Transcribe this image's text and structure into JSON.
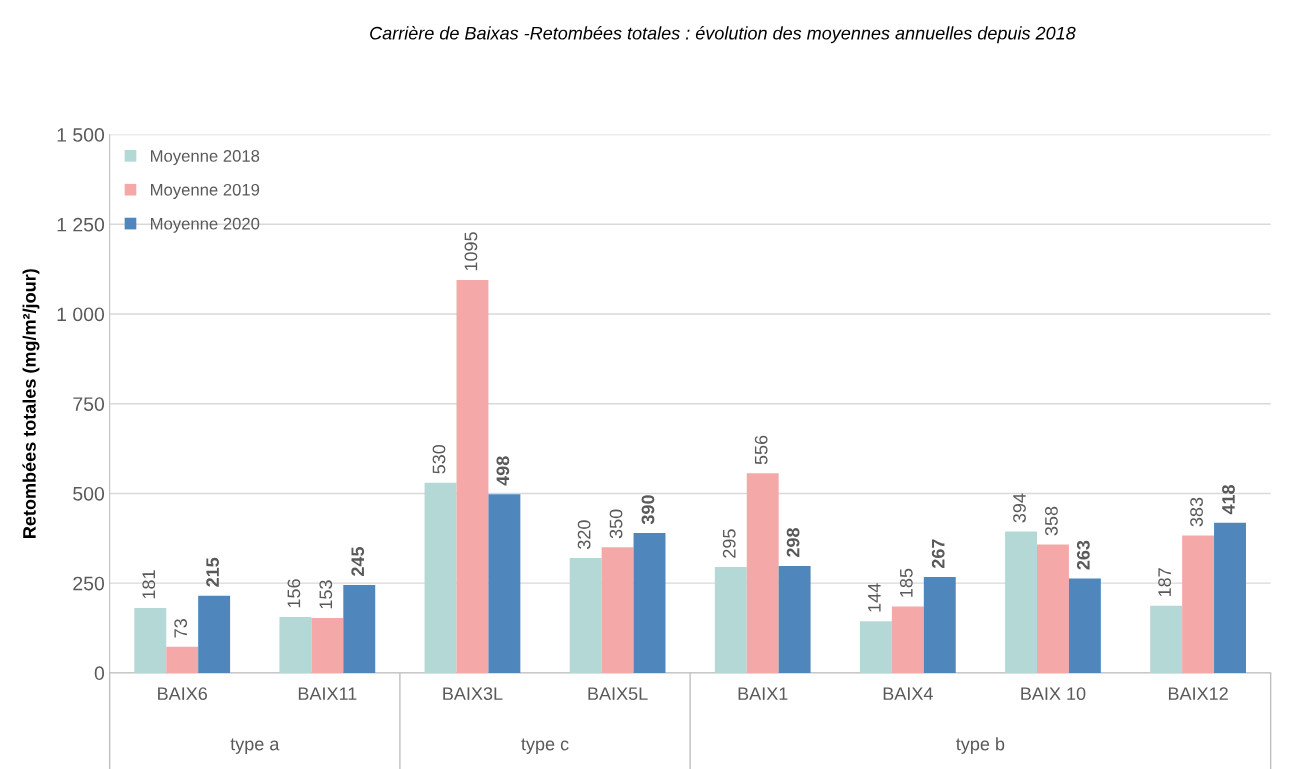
{
  "chart_data": {
    "type": "bar",
    "title": "Carrière de Baixas -Retombées totales : évolution des moyennes annuelles depuis 2018",
    "ylabel": "Retombées totales (mg/m²/jour)",
    "categories": [
      "BAIX6",
      "BAIX11",
      "BAIX3L",
      "BAIX5L",
      "BAIX1",
      "BAIX4",
      "BAIX 10",
      "BAIX12"
    ],
    "series": [
      {
        "name": "Moyenne 2018",
        "color": "#b4d8d6",
        "values": [
          181,
          156,
          530,
          320,
          295,
          144,
          394,
          187
        ]
      },
      {
        "name": "Moyenne 2019",
        "color": "#f4a9a8",
        "values": [
          73,
          153,
          1095,
          350,
          556,
          185,
          358,
          383
        ]
      },
      {
        "name": "Moyenne 2020",
        "color": "#4f86bb",
        "values": [
          215,
          245,
          498,
          390,
          298,
          267,
          263,
          418
        ]
      }
    ],
    "annotations": [
      "type a",
      "type c",
      "type b"
    ],
    "ylim": [
      0,
      1500
    ],
    "yticks": [
      {
        "value": 0,
        "label": "0"
      },
      {
        "value": 250,
        "label": "250"
      },
      {
        "value": 500,
        "label": "500"
      },
      {
        "value": 750,
        "label": "750"
      },
      {
        "value": 1000,
        "label": "1 000"
      },
      {
        "value": 1250,
        "label": "1 250"
      },
      {
        "value": 1500,
        "label": "1 500"
      }
    ],
    "grid": "y",
    "legend": "top left",
    "data_labels": true
  }
}
